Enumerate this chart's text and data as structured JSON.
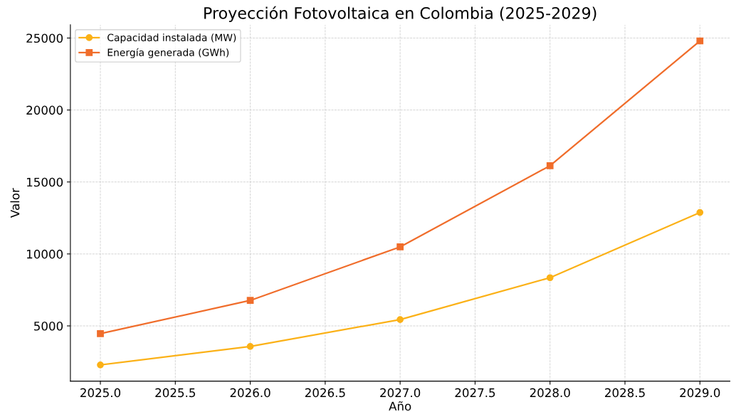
{
  "chart_data": {
    "type": "line",
    "title": "Proyección Fotovoltaica en Colombia (2025-2029)",
    "xlabel": "Año",
    "ylabel": "Valor",
    "x": [
      2025,
      2026,
      2027,
      2028,
      2029
    ],
    "series": [
      {
        "name": "Capacidad instalada (MW)",
        "color": "#fbb117",
        "marker": "circle",
        "values": [
          2290,
          3570,
          5440,
          8350,
          12880
        ]
      },
      {
        "name": "Energía generada (GWh)",
        "color": "#f06d2b",
        "marker": "square",
        "values": [
          4460,
          6770,
          10490,
          16130,
          24800
        ]
      }
    ],
    "xlim": [
      2024.8,
      2029.2
    ],
    "xticks": [
      {
        "value": 2025,
        "label": "2025.0"
      },
      {
        "value": 2025.5,
        "label": "2025.5"
      },
      {
        "value": 2026,
        "label": "2026.0"
      },
      {
        "value": 2026.5,
        "label": "2026.5"
      },
      {
        "value": 2027,
        "label": "2027.0"
      },
      {
        "value": 2027.5,
        "label": "2027.5"
      },
      {
        "value": 2028,
        "label": "2028.0"
      },
      {
        "value": 2028.5,
        "label": "2028.5"
      },
      {
        "value": 2029,
        "label": "2029.0"
      }
    ],
    "ylim": [
      1165,
      25925
    ],
    "yticks": [
      5000,
      10000,
      15000,
      20000,
      25000
    ],
    "grid": true,
    "legend": "top left",
    "line_style": "solid"
  }
}
